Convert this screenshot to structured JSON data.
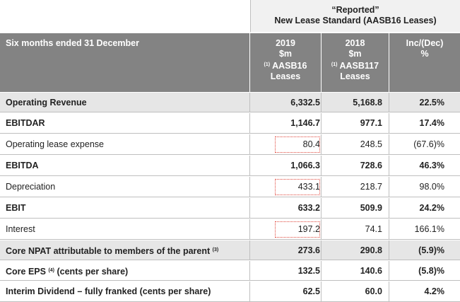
{
  "reported_header": {
    "line1": "“Reported”",
    "line2": "New Lease Standard (AASB16 Leases)"
  },
  "table_header": {
    "label": "Six months ended 31 December",
    "col2019": {
      "year": "2019",
      "unit": "$m",
      "note": "(1)",
      "standard": "AASB16",
      "leases": "Leases"
    },
    "col2018": {
      "year": "2018",
      "unit": "$m",
      "note": "(1)",
      "standard": "AASB117",
      "leases": "Leases"
    },
    "col_change": {
      "label": "Inc/(Dec)",
      "unit": "%"
    }
  },
  "rows": [
    {
      "label": "Operating Revenue",
      "note": "",
      "suffix": "",
      "v2019": "6,332.5",
      "v2018": "5,168.8",
      "change": "22.5%",
      "bold": true,
      "shade": true,
      "highlight": false
    },
    {
      "label": "EBITDAR",
      "note": "",
      "suffix": "",
      "v2019": "1,146.7",
      "v2018": "977.1",
      "change": "17.4%",
      "bold": true,
      "shade": false,
      "highlight": false
    },
    {
      "label": "Operating lease expense",
      "note": "",
      "suffix": "",
      "v2019": "80.4",
      "v2018": "248.5",
      "change": "(67.6)%",
      "bold": false,
      "shade": false,
      "highlight": true
    },
    {
      "label": "EBITDA",
      "note": "",
      "suffix": "",
      "v2019": "1,066.3",
      "v2018": "728.6",
      "change": "46.3%",
      "bold": true,
      "shade": false,
      "highlight": false
    },
    {
      "label": "Depreciation",
      "note": "",
      "suffix": "",
      "v2019": "433.1",
      "v2018": "218.7",
      "change": "98.0%",
      "bold": false,
      "shade": false,
      "highlight": true
    },
    {
      "label": "EBIT",
      "note": "",
      "suffix": "",
      "v2019": "633.2",
      "v2018": "509.9",
      "change": "24.2%",
      "bold": true,
      "shade": false,
      "highlight": false
    },
    {
      "label": "Interest",
      "note": "",
      "suffix": "",
      "v2019": "197.2",
      "v2018": "74.1",
      "change": "166.1%",
      "bold": false,
      "shade": false,
      "highlight": true
    },
    {
      "label": "Core NPAT attributable to members of the parent",
      "note": "(3)",
      "suffix": "",
      "v2019": "273.6",
      "v2018": "290.8",
      "change": "(5.9)%",
      "bold": true,
      "shade": true,
      "highlight": false
    },
    {
      "label": "Core EPS",
      "note": "(4)",
      "suffix": "(cents per share)",
      "v2019": "132.5",
      "v2018": "140.6",
      "change": "(5.8)%",
      "bold": true,
      "shade": false,
      "highlight": false
    },
    {
      "label": "Interim Dividend – fully franked (cents per share)",
      "note": "",
      "suffix": "",
      "v2019": "62.5",
      "v2018": "60.0",
      "change": "4.2%",
      "bold": true,
      "shade": false,
      "highlight": false
    }
  ]
}
